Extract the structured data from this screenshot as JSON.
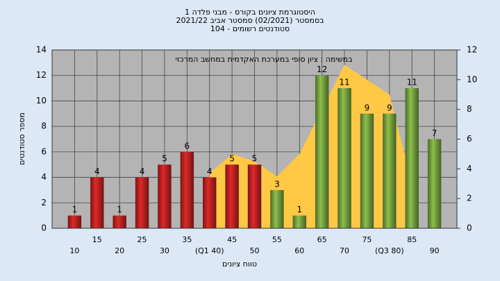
{
  "chart_data": {
    "type": "bar",
    "title": [
      "היסטוגרמת ציונים בקורס - מבני פלדה 1",
      "בסמסטר  (02/2021)  סמסטר אביב 2021/22",
      "סטודנטים רשומים - 104"
    ],
    "annotation": "במשימה : ציון סופי במערכת האקדמית במחשב המרכזי",
    "x_label": "טווח ציונים",
    "y_label": "מספר סטודנטים",
    "categories": [
      "10",
      "15",
      "20",
      "25",
      "30",
      "35",
      "(Q1 40)",
      "45",
      "50",
      "55",
      "60",
      "65",
      "70",
      "75",
      "(Q3 80)",
      "85",
      "90"
    ],
    "series": [
      {
        "values": [
          1,
          4,
          1,
          4,
          5,
          6,
          4,
          5,
          5,
          3,
          1,
          12,
          11,
          9,
          9,
          11,
          7
        ],
        "colors": [
          "#e02828",
          "#e02828",
          "#e02828",
          "#e02828",
          "#e02828",
          "#e02828",
          "#e02828",
          "#e02828",
          "#e02828",
          "#8cc04a",
          "#8cc04a",
          "#8cc04a",
          "#8cc04a",
          "#8cc04a",
          "#8cc04a",
          "#8cc04a",
          "#8cc04a"
        ]
      },
      {
        "type": "area",
        "axis": "y2",
        "color": "#ffc845",
        "values": [
          null,
          null,
          null,
          null,
          null,
          null,
          3.7,
          5,
          4.5,
          3.5,
          5,
          8,
          11,
          10,
          9,
          3,
          null
        ]
      }
    ],
    "ylim": [
      0,
      14
    ],
    "yticks": [
      0,
      2,
      4,
      6,
      8,
      10,
      12,
      14
    ],
    "y2lim": [
      0,
      12
    ],
    "y2ticks": [
      0,
      2,
      4,
      6,
      8,
      10,
      12
    ],
    "grid": true
  }
}
